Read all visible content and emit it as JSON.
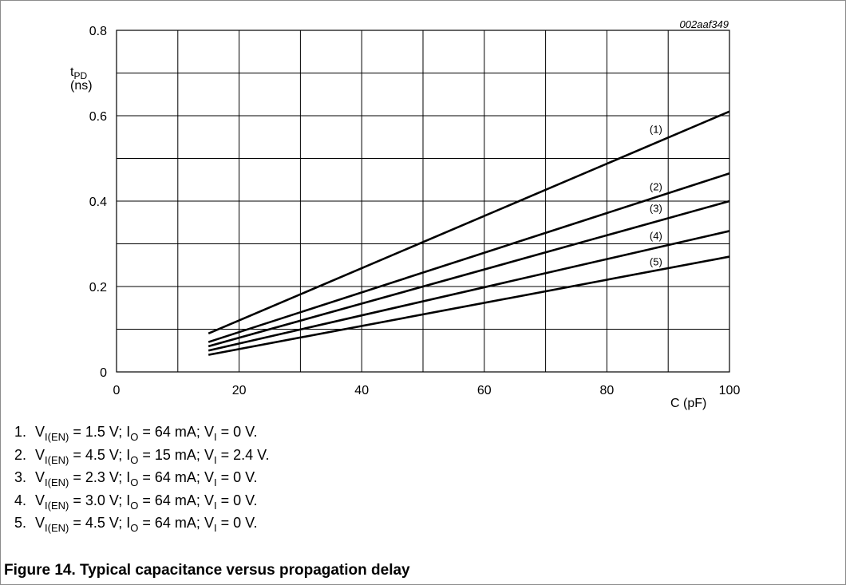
{
  "figure": {
    "code": "002aaf349",
    "caption": "Figure 14.  Typical capacitance versus propagation delay"
  },
  "chart_data": {
    "type": "line",
    "title": "",
    "ylabel_main": "t",
    "ylabel_sub": "PD",
    "ylabel_unit": "(ns)",
    "xlabel": "C (pF)",
    "xlim": [
      0,
      100
    ],
    "ylim": [
      0,
      0.8
    ],
    "xticks": [
      0,
      20,
      40,
      60,
      80,
      100
    ],
    "xtick_labels": [
      "0",
      "20",
      "40",
      "60",
      "80",
      "100"
    ],
    "yticks": [
      0,
      0.2,
      0.4,
      0.6,
      0.8
    ],
    "ytick_labels": [
      "0",
      "0.2",
      "0.4",
      "0.6",
      "0.8"
    ],
    "x_gridlines": [
      0,
      10,
      20,
      30,
      40,
      50,
      60,
      70,
      80,
      90,
      100
    ],
    "y_gridlines": [
      0,
      0.1,
      0.2,
      0.3,
      0.4,
      0.5,
      0.6,
      0.7,
      0.8
    ],
    "grid": true,
    "series": [
      {
        "label": "(1)",
        "x": [
          15,
          100
        ],
        "y": [
          0.09,
          0.61
        ],
        "label_at": [
          88,
          0.56
        ]
      },
      {
        "label": "(2)",
        "x": [
          15,
          100
        ],
        "y": [
          0.07,
          0.465
        ],
        "label_at": [
          88,
          0.425
        ]
      },
      {
        "label": "(3)",
        "x": [
          15,
          100
        ],
        "y": [
          0.06,
          0.4
        ],
        "label_at": [
          88,
          0.375
        ]
      },
      {
        "label": "(4)",
        "x": [
          15,
          100
        ],
        "y": [
          0.05,
          0.33
        ],
        "label_at": [
          88,
          0.31
        ]
      },
      {
        "label": "(5)",
        "x": [
          15,
          100
        ],
        "y": [
          0.04,
          0.27
        ],
        "label_at": [
          88,
          0.25
        ]
      }
    ]
  },
  "notes": [
    {
      "num": "1.",
      "vi_en": "1.5 V",
      "io": "64 mA",
      "vi": "0 V"
    },
    {
      "num": "2.",
      "vi_en": "4.5 V",
      "io": "15 mA",
      "vi": "2.4 V"
    },
    {
      "num": "3.",
      "vi_en": "2.3 V",
      "io": "64 mA",
      "vi": "0 V"
    },
    {
      "num": "4.",
      "vi_en": "3.0 V",
      "io": "64 mA",
      "vi": "0 V"
    },
    {
      "num": "5.",
      "vi_en": "4.5 V",
      "io": "64 mA",
      "vi": "0 V"
    }
  ],
  "note_symbols": {
    "v": "V",
    "i": "I",
    "sub_en": "I(EN)",
    "sub_o": "O",
    "sub_i": "I",
    "eq": " = ",
    "sep": "; "
  }
}
